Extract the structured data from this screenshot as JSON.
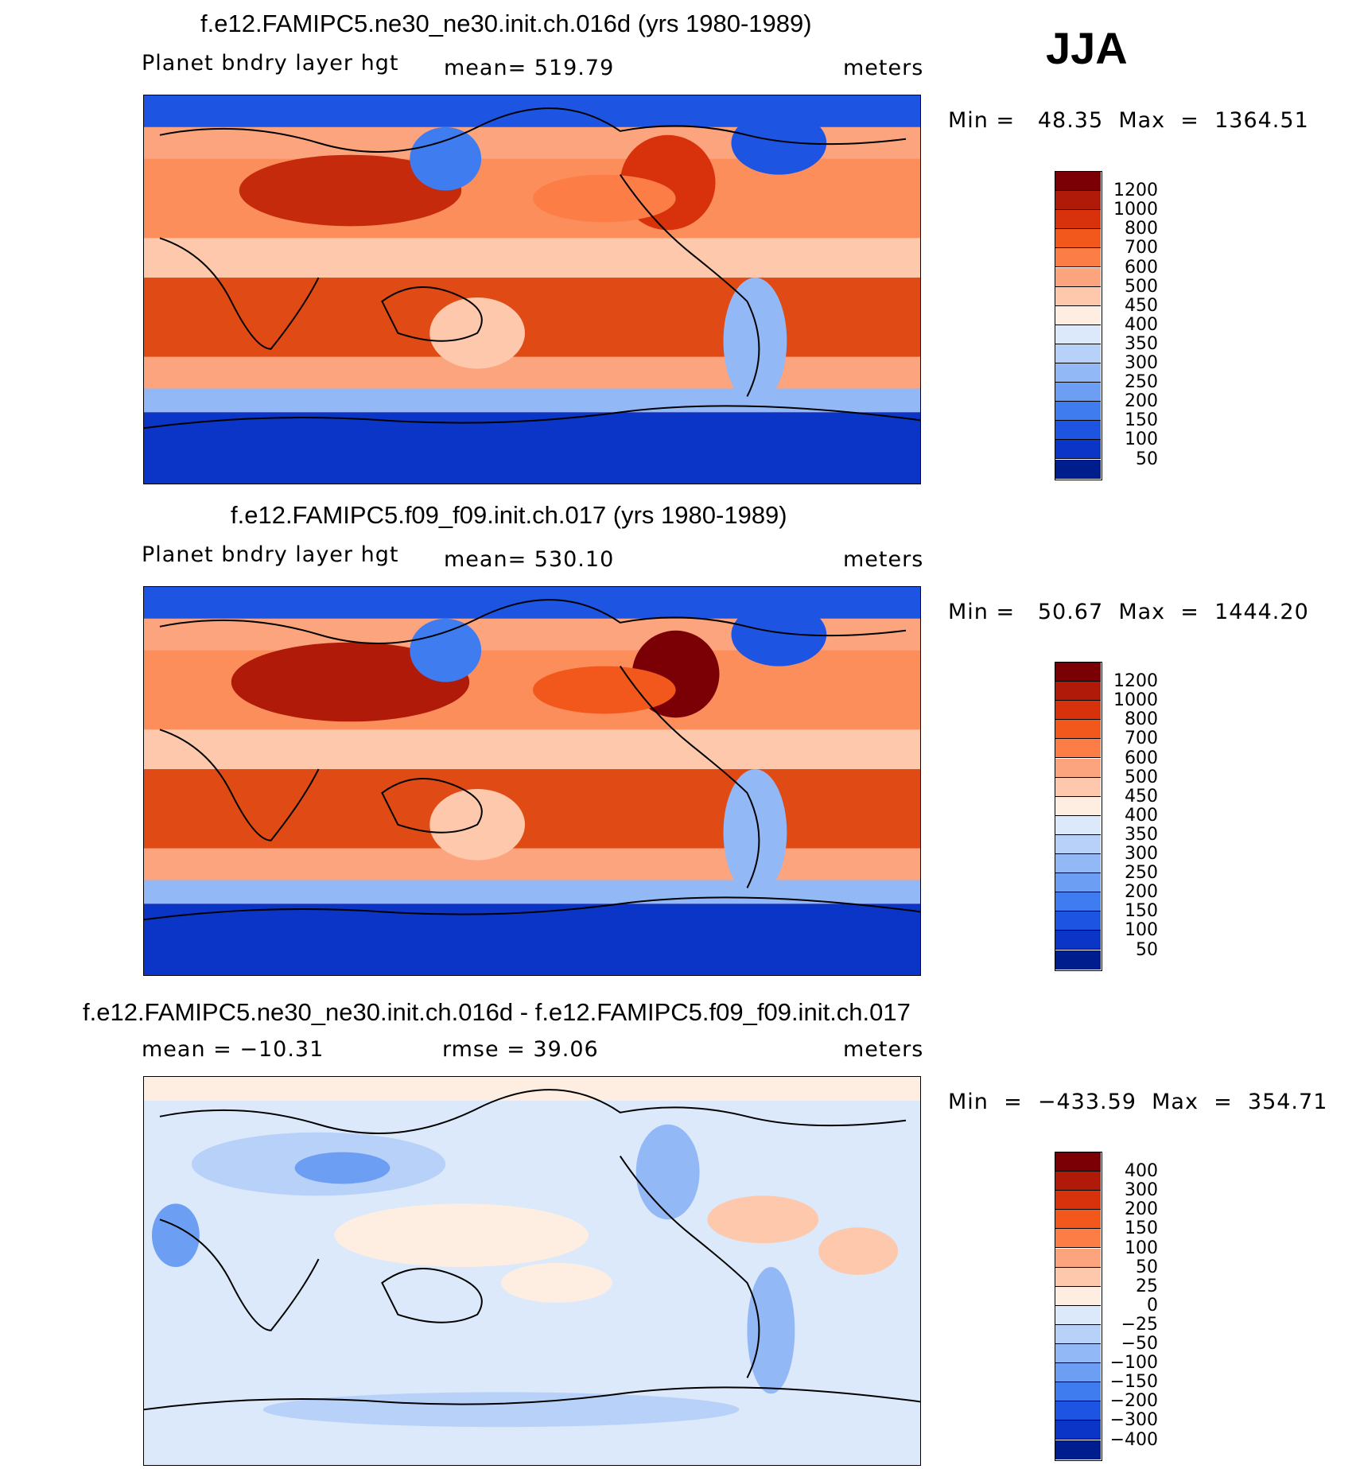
{
  "season": "JJA",
  "panels": [
    {
      "title": "f.e12.FAMIPC5.ne30_ne30.init.ch.016d (yrs 1980-1989)",
      "left_label": "Planet bndry layer hgt",
      "center_label": "mean=  519.79",
      "right_label": "meters",
      "stats": "Min =   48.35  Max  =  1364.51",
      "colorbar": {
        "labels": [
          "1200",
          "1000",
          "800",
          "700",
          "600",
          "500",
          "450",
          "400",
          "350",
          "300",
          "250",
          "200",
          "150",
          "100",
          "50"
        ],
        "colors": [
          "#7a0006",
          "#b01a08",
          "#d8320c",
          "#f2571c",
          "#fc7d46",
          "#fca47d",
          "#fdc8ab",
          "#feeee1",
          "#dbe9fb",
          "#b7d1f8",
          "#93b8f6",
          "#6c9ff4",
          "#3f7cf0",
          "#1d54e2",
          "#0a35c6",
          "#001d8e"
        ]
      }
    },
    {
      "title": "f.e12.FAMIPC5.f09_f09.init.ch.017 (yrs 1980-1989)",
      "left_label": "Planet bndry layer hgt",
      "center_label": "mean=  530.10",
      "right_label": "meters",
      "stats": "Min =   50.67  Max  =  1444.20",
      "colorbar": {
        "labels": [
          "1200",
          "1000",
          "800",
          "700",
          "600",
          "500",
          "450",
          "400",
          "350",
          "300",
          "250",
          "200",
          "150",
          "100",
          "50"
        ],
        "colors": [
          "#7a0006",
          "#b01a08",
          "#d8320c",
          "#f2571c",
          "#fc7d46",
          "#fca47d",
          "#fdc8ab",
          "#feeee1",
          "#dbe9fb",
          "#b7d1f8",
          "#93b8f6",
          "#6c9ff4",
          "#3f7cf0",
          "#1d54e2",
          "#0a35c6",
          "#001d8e"
        ]
      }
    },
    {
      "title": "f.e12.FAMIPC5.ne30_ne30.init.ch.016d - f.e12.FAMIPC5.f09_f09.init.ch.017",
      "left_label": "mean  =  −10.31",
      "center_label": "rmse  =   39.06",
      "right_label": "meters",
      "stats": "Min  =  −433.59  Max  =  354.71",
      "colorbar": {
        "labels": [
          "400",
          "300",
          "200",
          "150",
          "100",
          "50",
          "25",
          "0",
          "−25",
          "−50",
          "−100",
          "−150",
          "−200",
          "−300",
          "−400"
        ],
        "colors": [
          "#7a0006",
          "#b01a08",
          "#d8320c",
          "#f2571c",
          "#fc7d46",
          "#fca47d",
          "#fdc8ab",
          "#feeee1",
          "#dbe9fb",
          "#b7d1f8",
          "#93b8f6",
          "#6c9ff4",
          "#3f7cf0",
          "#1d54e2",
          "#0a35c6",
          "#001d8e"
        ]
      }
    }
  ]
}
